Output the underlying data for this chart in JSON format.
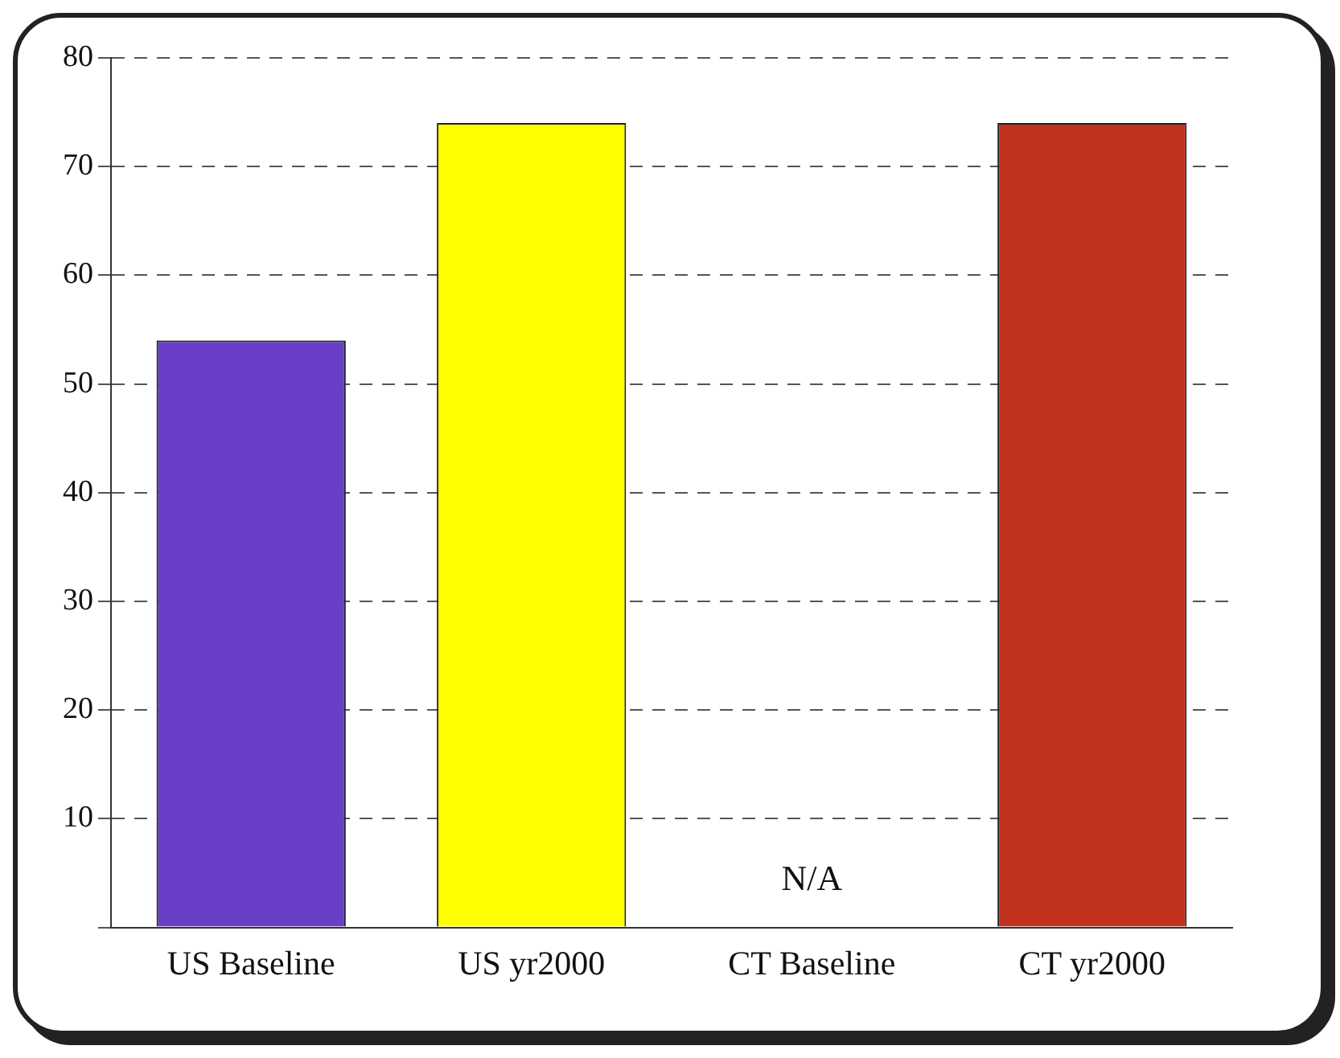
{
  "chart_data": {
    "type": "bar",
    "categories": [
      "US Baseline",
      "US yr2000",
      "CT Baseline",
      "CT yr2000"
    ],
    "values": [
      54,
      74,
      null,
      74
    ],
    "colors": [
      "#6a3fc8",
      "#ffff00",
      "#c0311e",
      "#c0311e"
    ],
    "ylim": [
      0,
      80
    ],
    "yticks": [
      {
        "value": 0,
        "label": null
      },
      10,
      20,
      30,
      40,
      50,
      60,
      70,
      80
    ],
    "grid": "y",
    "legend": false,
    "annotations": [
      "N/A"
    ]
  }
}
